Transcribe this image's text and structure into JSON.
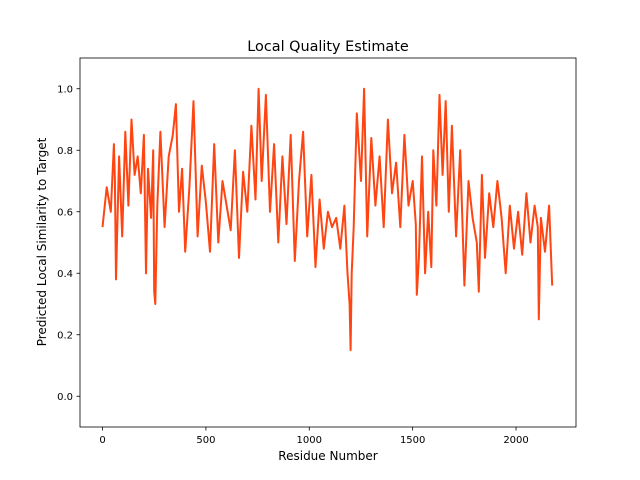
{
  "chart_data": {
    "type": "line",
    "title": "Local Quality Estimate",
    "xlabel": "Residue Number",
    "ylabel": "Predicted Local Similarity to Target",
    "xlim": [
      -109,
      2290
    ],
    "ylim": [
      -0.1,
      1.1
    ],
    "xticks": [
      0,
      500,
      1000,
      1500,
      2000
    ],
    "yticks": [
      0.0,
      0.2,
      0.4,
      0.6,
      0.8,
      1.0
    ],
    "ytick_labels": [
      "0.0",
      "0.2",
      "0.4",
      "0.6",
      "0.8",
      "1.0"
    ],
    "grid": false,
    "series": [
      {
        "color": "#ff4512",
        "x": [
          0,
          20,
          40,
          55,
          60,
          65,
          80,
          95,
          110,
          125,
          140,
          155,
          170,
          185,
          200,
          210,
          220,
          235,
          245,
          250,
          255,
          265,
          280,
          300,
          320,
          340,
          355,
          370,
          385,
          400,
          420,
          440,
          460,
          480,
          500,
          520,
          540,
          560,
          580,
          600,
          620,
          640,
          660,
          680,
          700,
          720,
          740,
          755,
          770,
          790,
          810,
          830,
          850,
          870,
          890,
          910,
          930,
          950,
          970,
          990,
          1010,
          1030,
          1050,
          1070,
          1090,
          1110,
          1130,
          1150,
          1170,
          1185,
          1195,
          1200,
          1205,
          1215,
          1230,
          1250,
          1265,
          1280,
          1300,
          1320,
          1340,
          1360,
          1380,
          1400,
          1420,
          1440,
          1460,
          1480,
          1500,
          1515,
          1520,
          1530,
          1545,
          1560,
          1575,
          1590,
          1600,
          1615,
          1630,
          1645,
          1660,
          1675,
          1690,
          1710,
          1730,
          1750,
          1770,
          1790,
          1810,
          1820,
          1835,
          1850,
          1870,
          1890,
          1910,
          1930,
          1950,
          1970,
          1990,
          2010,
          2030,
          2050,
          2070,
          2090,
          2105,
          2110,
          2120,
          2140,
          2160,
          2175
        ],
        "y": [
          0.55,
          0.68,
          0.6,
          0.82,
          0.7,
          0.38,
          0.78,
          0.52,
          0.86,
          0.62,
          0.9,
          0.72,
          0.78,
          0.66,
          0.85,
          0.4,
          0.74,
          0.58,
          0.8,
          0.34,
          0.3,
          0.62,
          0.86,
          0.55,
          0.78,
          0.85,
          0.95,
          0.6,
          0.74,
          0.47,
          0.68,
          0.96,
          0.52,
          0.75,
          0.63,
          0.47,
          0.82,
          0.5,
          0.7,
          0.62,
          0.54,
          0.8,
          0.45,
          0.73,
          0.6,
          0.88,
          0.64,
          1.0,
          0.7,
          0.98,
          0.6,
          0.82,
          0.5,
          0.78,
          0.56,
          0.85,
          0.44,
          0.7,
          0.86,
          0.52,
          0.72,
          0.42,
          0.64,
          0.48,
          0.6,
          0.55,
          0.58,
          0.48,
          0.62,
          0.4,
          0.3,
          0.15,
          0.4,
          0.55,
          0.92,
          0.7,
          1.0,
          0.52,
          0.84,
          0.62,
          0.78,
          0.55,
          0.9,
          0.66,
          0.76,
          0.55,
          0.85,
          0.62,
          0.7,
          0.56,
          0.33,
          0.45,
          0.78,
          0.4,
          0.6,
          0.42,
          0.8,
          0.62,
          0.98,
          0.72,
          0.96,
          0.6,
          0.88,
          0.52,
          0.8,
          0.36,
          0.7,
          0.58,
          0.5,
          0.34,
          0.72,
          0.45,
          0.66,
          0.55,
          0.7,
          0.58,
          0.4,
          0.62,
          0.48,
          0.6,
          0.46,
          0.66,
          0.5,
          0.62,
          0.55,
          0.25,
          0.58,
          0.47,
          0.62,
          0.36
        ]
      }
    ]
  }
}
